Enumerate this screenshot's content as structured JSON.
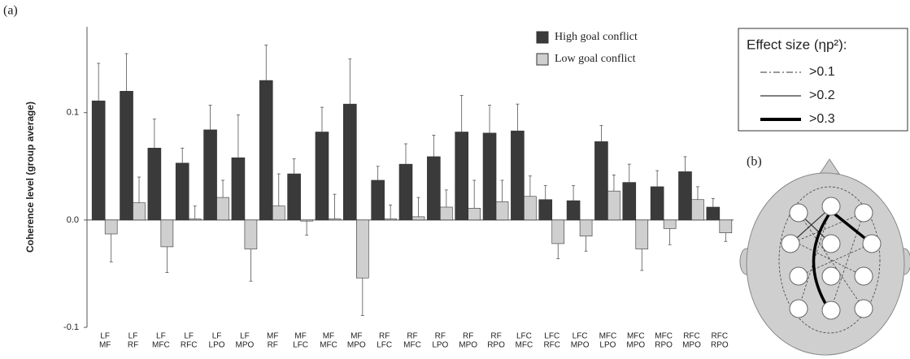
{
  "panel_labels": [
    "(a)",
    "(b)"
  ],
  "effect_legend": {
    "title": "Effect size (ηp²):",
    "items": [
      ">0.1",
      ">0.2",
      ">0.3"
    ]
  },
  "chart_data": {
    "type": "bar",
    "y_label": "Coherence level (group average)",
    "categories": [
      [
        "LF",
        "MF"
      ],
      [
        "LF",
        "RF"
      ],
      [
        "LF",
        "MFC"
      ],
      [
        "LF",
        "RFC"
      ],
      [
        "LF",
        "LPO"
      ],
      [
        "LF",
        "MPO"
      ],
      [
        "MF",
        "RF"
      ],
      [
        "MF",
        "LFC"
      ],
      [
        "MF",
        "MFC"
      ],
      [
        "MF",
        "MPO"
      ],
      [
        "RF",
        "LFC"
      ],
      [
        "RF",
        "MFC"
      ],
      [
        "RF",
        "LPO"
      ],
      [
        "RF",
        "MPO"
      ],
      [
        "RF",
        "RPO"
      ],
      [
        "LFC",
        "MFC"
      ],
      [
        "LFC",
        "RFC"
      ],
      [
        "LFC",
        "MPO"
      ],
      [
        "MFC",
        "LPO"
      ],
      [
        "MFC",
        "MPO"
      ],
      [
        "MFC",
        "RPO"
      ],
      [
        "RFC",
        "MPO"
      ],
      [
        "RFC",
        "RPO"
      ]
    ],
    "series": [
      {
        "name": "High goal conflict",
        "color": "#3a3a3a",
        "values": [
          0.111,
          0.12,
          0.067,
          0.053,
          0.084,
          0.058,
          0.13,
          0.043,
          0.082,
          0.108,
          0.037,
          0.052,
          0.059,
          0.082,
          0.081,
          0.083,
          0.019,
          0.018,
          0.073,
          0.035,
          0.031,
          0.045,
          0.012
        ],
        "errors": [
          0.035,
          0.035,
          0.027,
          0.014,
          0.023,
          0.04,
          0.033,
          0.014,
          0.023,
          0.042,
          0.013,
          0.019,
          0.02,
          0.034,
          0.026,
          0.025,
          0.013,
          0.014,
          0.015,
          0.017,
          0.015,
          0.014,
          0.008
        ]
      },
      {
        "name": "Low goal conflict",
        "color": "#cfcfcf",
        "values": [
          -0.013,
          0.016,
          -0.025,
          0.001,
          0.021,
          -0.027,
          0.013,
          -0.001,
          0.001,
          -0.054,
          0.001,
          0.003,
          0.012,
          0.011,
          0.017,
          0.022,
          -0.022,
          -0.015,
          0.027,
          -0.027,
          -0.008,
          0.019,
          -0.012
        ],
        "errors": [
          0.026,
          0.024,
          0.024,
          0.012,
          0.016,
          0.03,
          0.03,
          0.013,
          0.023,
          0.035,
          0.013,
          0.018,
          0.016,
          0.026,
          0.02,
          0.019,
          0.014,
          0.014,
          0.015,
          0.02,
          0.015,
          0.012,
          0.008
        ]
      }
    ],
    "ylim": [
      -0.1,
      0.18
    ],
    "yticks": [
      -0.1,
      {
        "value": 0,
        "label": "0.0"
      },
      0.1
    ],
    "legend": "upper right"
  }
}
